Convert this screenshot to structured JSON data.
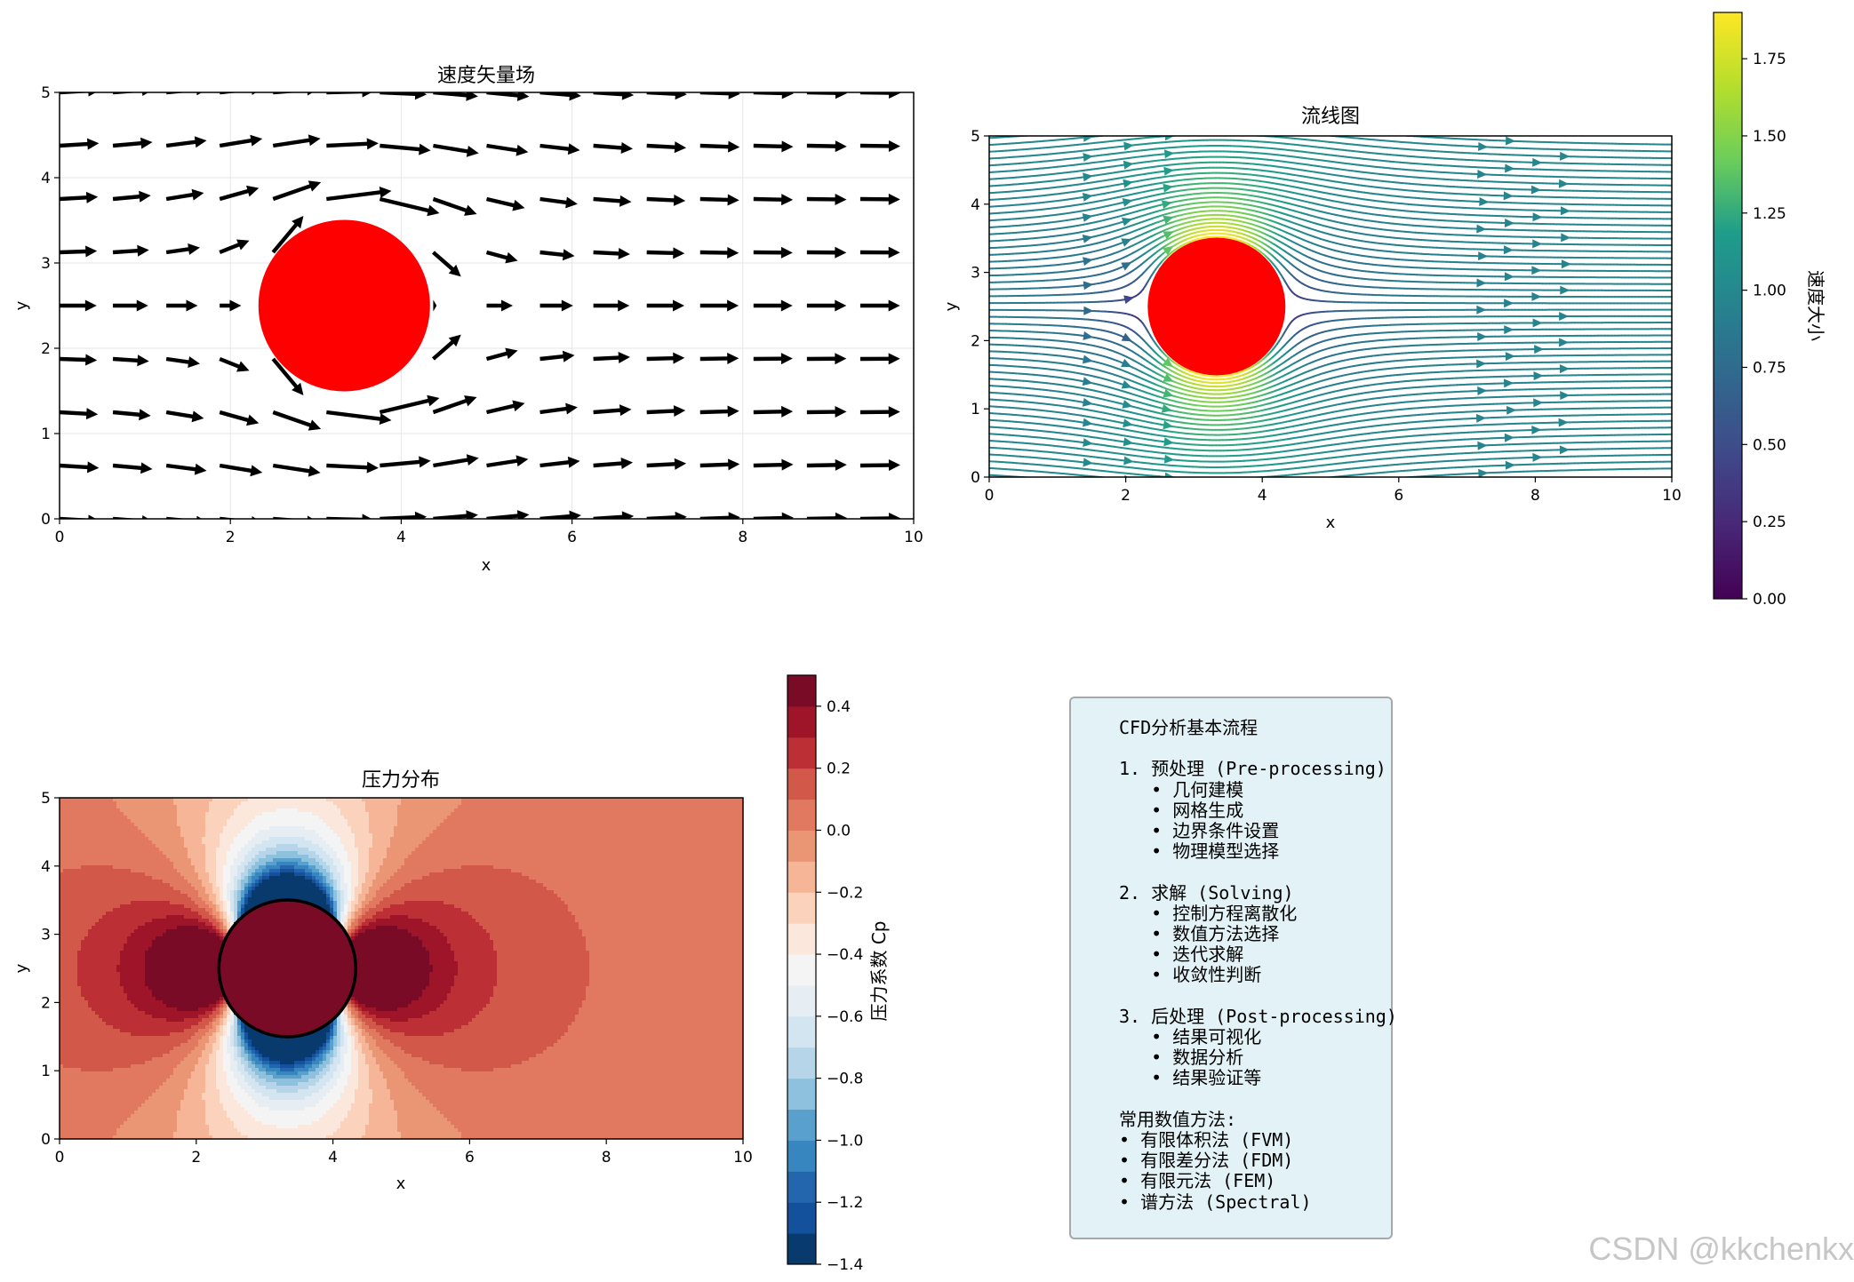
{
  "chart_data": [
    {
      "type": "quiver",
      "title": "速度矢量场",
      "xlabel": "x",
      "ylabel": "y",
      "xlim": [
        0,
        10
      ],
      "ylim": [
        0,
        5
      ],
      "xticks": [
        "0",
        "2",
        "4",
        "6",
        "8",
        "10"
      ],
      "yticks": [
        "0",
        "1",
        "2",
        "3",
        "4",
        "5"
      ],
      "grid": true,
      "obstacle": {
        "shape": "circle",
        "center": [
          3.33,
          2.5
        ],
        "radius": 1.0,
        "color": "#ff0000"
      },
      "free_stream_velocity": 1.0,
      "arrow_grid": {
        "x_count": 17,
        "y_count": 9,
        "x_range": [
          0,
          10
        ],
        "y_range": [
          0,
          5
        ]
      }
    },
    {
      "type": "streamline",
      "title": "流线图",
      "xlabel": "x",
      "ylabel": "y",
      "xlim": [
        0,
        10
      ],
      "ylim": [
        0,
        5
      ],
      "xticks": [
        "0",
        "2",
        "4",
        "6",
        "8",
        "10"
      ],
      "yticks": [
        "0",
        "1",
        "2",
        "3",
        "4",
        "5"
      ],
      "obstacle": {
        "shape": "circle",
        "center": [
          3.33,
          2.5
        ],
        "radius": 1.0,
        "color": "#ff0000"
      },
      "colormap": "viridis",
      "colorbar": {
        "label": "速度大小",
        "range": [
          0,
          1.9
        ],
        "ticks": [
          "0.00",
          "0.25",
          "0.50",
          "0.75",
          "1.00",
          "1.25",
          "1.50",
          "1.75"
        ]
      }
    },
    {
      "type": "contour",
      "title": "压力分布",
      "xlabel": "x",
      "ylabel": "y",
      "xlim": [
        0,
        10
      ],
      "ylim": [
        0,
        5
      ],
      "xticks": [
        "0",
        "2",
        "4",
        "6",
        "8",
        "10"
      ],
      "yticks": [
        "0",
        "1",
        "2",
        "3",
        "4",
        "5"
      ],
      "obstacle": {
        "shape": "circle",
        "center": [
          3.33,
          2.5
        ],
        "radius": 1.0,
        "edge_color": "#000000"
      },
      "colormap": "RdBu_r",
      "levels": [
        -1.4,
        -1.3,
        -1.2,
        -1.1,
        -1.0,
        -0.9,
        -0.8,
        -0.7,
        -0.6,
        -0.5,
        -0.4,
        -0.3,
        -0.2,
        -0.1,
        0.0,
        0.1,
        0.2,
        0.3,
        0.4,
        0.5
      ],
      "colorbar": {
        "label": "压力系数 Cp",
        "range": [
          -1.4,
          0.5
        ],
        "ticks": [
          "0.4",
          "0.2",
          "0.0",
          "−0.2",
          "−0.4",
          "−0.6",
          "−0.8",
          "−1.0",
          "−1.2",
          "−1.4"
        ]
      }
    }
  ],
  "info_text": "CFD分析基本流程\n\n1. 预处理 (Pre-processing)\n   • 几何建模\n   • 网格生成\n   • 边界条件设置\n   • 物理模型选择\n\n2. 求解 (Solving)\n   • 控制方程离散化\n   • 数值方法选择\n   • 迭代求解\n   • 收敛性判断\n\n3. 后处理 (Post-processing)\n   • 结果可视化\n   • 数据分析\n   • 结果验证等\n\n常用数值方法:\n• 有限体积法 (FVM)\n• 有限差分法 (FDM)\n• 有限元法 (FEM)\n• 谱方法 (Spectral)",
  "watermark": "CSDN @kkchenkx"
}
